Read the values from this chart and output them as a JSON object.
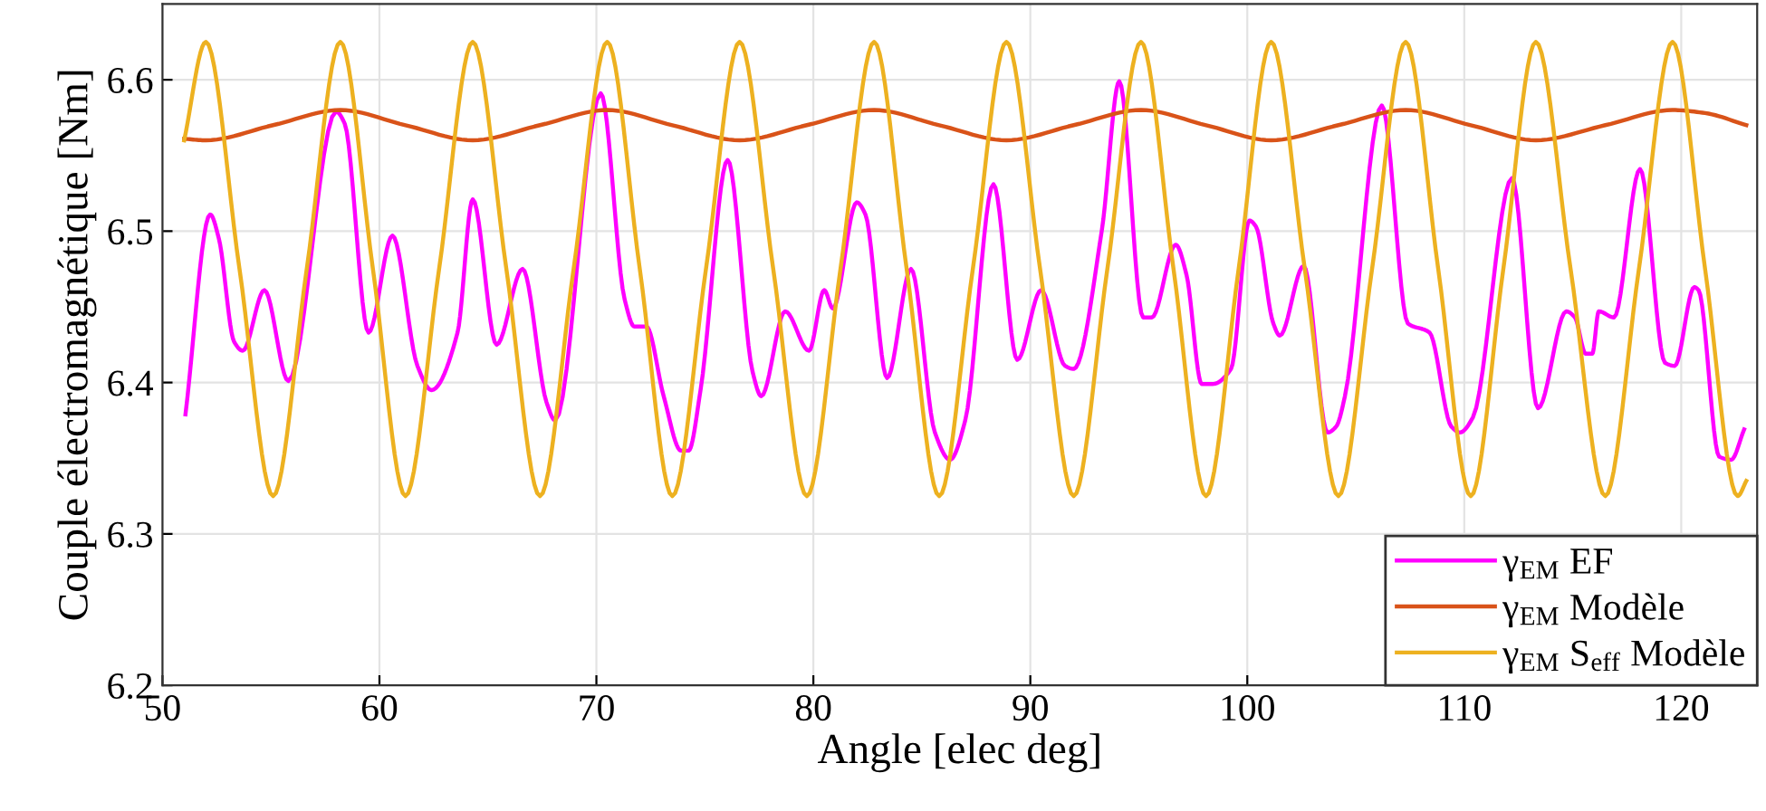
{
  "chart_data": {
    "type": "line",
    "xlabel": "Angle [elec deg]",
    "ylabel": "Couple électromagnétique [Nm]",
    "xlim": [
      50,
      123.5
    ],
    "xticks": [
      50,
      60,
      70,
      80,
      90,
      100,
      110,
      120
    ],
    "ylim": [
      6.2,
      6.65
    ],
    "yticks": [
      6.2,
      6.3,
      6.4,
      6.5,
      6.6
    ],
    "grid": true,
    "legend": "bottom right",
    "marker": "none",
    "line_style": "solid",
    "series": [
      {
        "name": "γ$_{EM}$ EF",
        "color": "#ff00ff",
        "x": [
          51.06,
          52.2,
          52.6,
          53.3,
          53.7,
          54.7,
          55.8,
          58.0,
          58.4,
          59.5,
          60.6,
          61.75,
          62.4,
          63.6,
          64.3,
          65.4,
          66.6,
          67.7,
          68.1,
          70.2,
          71.3,
          71.75,
          72.3,
          73.1,
          73.9,
          74.25,
          74.8,
          76.05,
          77.2,
          77.6,
          78.7,
          79.8,
          80.5,
          80.9,
          82.0,
          82.4,
          83.4,
          84.5,
          85.6,
          86.3,
          87.0,
          88.3,
          89.4,
          90.5,
          91.6,
          92.0,
          93.3,
          94.1,
          95.2,
          95.6,
          96.7,
          97.2,
          97.9,
          98.4,
          99.25,
          100.1,
          100.4,
          101.2,
          101.5,
          102.6,
          103.7,
          104.1,
          104.5,
          106.2,
          107.4,
          108.4,
          109.4,
          109.8,
          110.4,
          112.2,
          113.4,
          114.7,
          115.1,
          115.6,
          115.9,
          116.2,
          116.9,
          118.1,
          119.25,
          119.7,
          120.6,
          120.8,
          121.75,
          122.3,
          122.9
        ],
        "values": [
          6.379,
          6.511,
          6.495,
          6.427,
          6.421,
          6.461,
          6.401,
          6.579,
          6.571,
          6.433,
          6.497,
          6.411,
          6.395,
          6.433,
          6.521,
          6.425,
          6.475,
          6.387,
          6.375,
          6.591,
          6.455,
          6.437,
          6.437,
          6.391,
          6.355,
          6.355,
          6.395,
          6.547,
          6.407,
          6.391,
          6.447,
          6.421,
          6.461,
          6.449,
          6.519,
          6.511,
          6.403,
          6.475,
          6.367,
          6.349,
          6.375,
          6.531,
          6.415,
          6.461,
          6.411,
          6.409,
          6.501,
          6.599,
          6.443,
          6.443,
          6.491,
          6.471,
          6.399,
          6.399,
          6.409,
          6.507,
          6.503,
          6.439,
          6.431,
          6.477,
          6.367,
          6.371,
          6.391,
          6.583,
          6.439,
          6.433,
          6.371,
          6.367,
          6.377,
          6.535,
          6.383,
          6.447,
          6.443,
          6.419,
          6.419,
          6.447,
          6.443,
          6.541,
          6.413,
          6.411,
          6.463,
          6.461,
          6.351,
          6.349,
          6.369
        ]
      },
      {
        "name": "γ$_{EM}$ Modèle",
        "color": "#d95319",
        "x": [
          51,
          52.0,
          55.1,
          58.2,
          61.2,
          64.3,
          67.4,
          70.5,
          73.5,
          76.6,
          79.7,
          82.8,
          85.8,
          88.9,
          92.0,
          95.1,
          98.1,
          101.1,
          104.2,
          107.3,
          110.3,
          113.3,
          116.5,
          119.6,
          121.1,
          123
        ],
        "values": [
          6.561,
          6.56,
          6.57,
          6.58,
          6.57,
          6.56,
          6.57,
          6.58,
          6.57,
          6.56,
          6.57,
          6.58,
          6.57,
          6.56,
          6.57,
          6.58,
          6.57,
          6.56,
          6.57,
          6.58,
          6.57,
          6.56,
          6.57,
          6.58,
          6.578,
          6.57
        ]
      },
      {
        "name": "γ$_{EM}$ S$_{eff}$ Modèle",
        "color": "#edb120",
        "x": [
          51,
          52.0,
          53.55,
          55.1,
          56.65,
          58.2,
          59.7,
          61.2,
          62.75,
          64.3,
          65.85,
          67.4,
          68.95,
          70.5,
          72.0,
          73.5,
          75.05,
          76.6,
          78.15,
          79.7,
          81.25,
          82.8,
          84.3,
          85.8,
          87.35,
          88.9,
          90.45,
          92.0,
          93.55,
          95.1,
          96.6,
          98.1,
          99.6,
          101.1,
          102.65,
          104.2,
          105.75,
          107.3,
          108.8,
          110.3,
          111.8,
          113.3,
          114.9,
          116.5,
          118.05,
          119.6,
          121.1,
          122.6,
          123
        ],
        "values": [
          6.56,
          6.625,
          6.475,
          6.325,
          6.475,
          6.625,
          6.475,
          6.325,
          6.475,
          6.625,
          6.475,
          6.325,
          6.475,
          6.625,
          6.475,
          6.325,
          6.475,
          6.625,
          6.475,
          6.325,
          6.475,
          6.625,
          6.475,
          6.325,
          6.475,
          6.625,
          6.475,
          6.325,
          6.475,
          6.625,
          6.475,
          6.325,
          6.475,
          6.625,
          6.475,
          6.325,
          6.475,
          6.625,
          6.475,
          6.325,
          6.475,
          6.625,
          6.475,
          6.325,
          6.475,
          6.625,
          6.475,
          6.325,
          6.335
        ]
      }
    ]
  }
}
